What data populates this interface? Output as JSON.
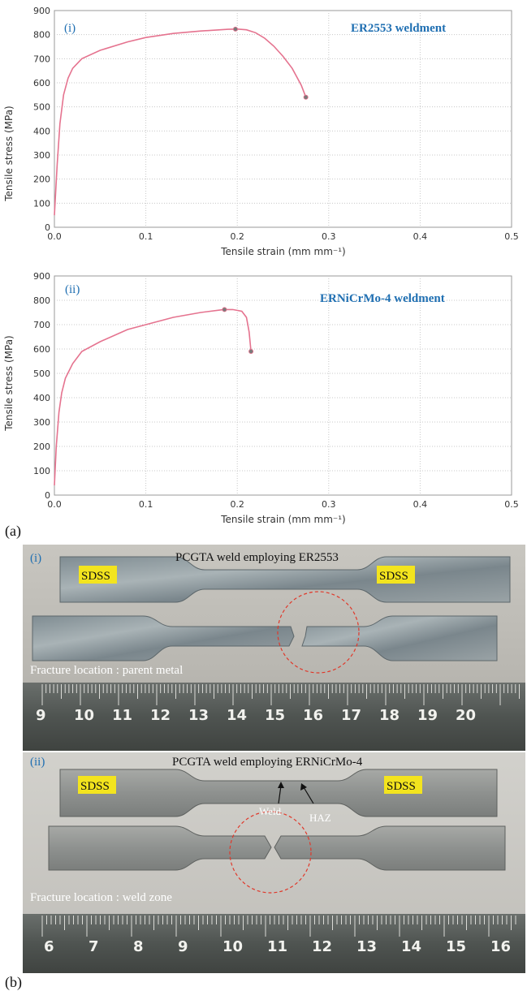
{
  "figure": {
    "panel_a_label": "(a)",
    "panel_b_label": "(b)"
  },
  "colors": {
    "curve": "#e5738f",
    "label_blue": "#1f6fb2",
    "highlight": "#f3e41e",
    "circle": "#e0382a",
    "plot_frame": "#9a9a9a",
    "grid": "#c8c8c8"
  },
  "chart_data": [
    {
      "type": "line",
      "panel_label": "(i)",
      "annotation": "ER2553 weldment",
      "xlabel": "Tensile strain (mm mm⁻¹)",
      "ylabel": "Tensile stress (MPa)",
      "xlim": [
        0,
        0.5
      ],
      "ylim": [
        0,
        900
      ],
      "xticks": [
        0.0,
        0.1,
        0.2,
        0.3,
        0.4,
        0.5
      ],
      "xtick_labels": [
        "0.0",
        "0.1",
        "0.2",
        "0.3",
        "0.4",
        "0.5"
      ],
      "yticks": [
        0,
        100,
        200,
        300,
        400,
        500,
        600,
        700,
        800,
        900
      ],
      "ytick_labels": [
        "0",
        "100",
        "200",
        "300",
        "400",
        "500",
        "600",
        "700",
        "800",
        "900"
      ],
      "grid": "dotted",
      "series": [
        {
          "x": [
            0,
            0.003,
            0.006,
            0.01,
            0.015,
            0.02,
            0.03,
            0.05,
            0.08,
            0.1,
            0.13,
            0.16,
            0.19,
            0.2,
            0.21,
            0.22,
            0.23,
            0.24,
            0.25,
            0.26,
            0.27,
            0.275
          ],
          "y": [
            50,
            260,
            430,
            550,
            620,
            660,
            700,
            735,
            770,
            788,
            805,
            815,
            822,
            823,
            820,
            808,
            785,
            752,
            710,
            660,
            590,
            540
          ]
        }
      ],
      "markers": [
        {
          "x": 0.198,
          "y": 823
        },
        {
          "x": 0.275,
          "y": 540
        }
      ]
    },
    {
      "type": "line",
      "panel_label": "(ii)",
      "annotation": "ERNiCrMo-4 weldment",
      "xlabel": "Tensile strain (mm mm⁻¹)",
      "ylabel": "Tensile stress (MPa)",
      "xlim": [
        0,
        0.5
      ],
      "ylim": [
        0,
        900
      ],
      "xticks": [
        0.0,
        0.1,
        0.2,
        0.3,
        0.4,
        0.5
      ],
      "xtick_labels": [
        "0.0",
        "0.1",
        "0.2",
        "0.3",
        "0.4",
        "0.5"
      ],
      "yticks": [
        0,
        100,
        200,
        300,
        400,
        500,
        600,
        700,
        800,
        900
      ],
      "ytick_labels": [
        "0",
        "100",
        "200",
        "300",
        "400",
        "500",
        "600",
        "700",
        "800",
        "900"
      ],
      "grid": "dotted",
      "series": [
        {
          "x": [
            0,
            0.002,
            0.005,
            0.008,
            0.012,
            0.02,
            0.03,
            0.05,
            0.08,
            0.1,
            0.13,
            0.16,
            0.185,
            0.195,
            0.205,
            0.21,
            0.213,
            0.215
          ],
          "y": [
            40,
            200,
            340,
            420,
            480,
            540,
            590,
            630,
            680,
            700,
            730,
            750,
            762,
            762,
            755,
            730,
            670,
            590
          ]
        }
      ],
      "markers": [
        {
          "x": 0.186,
          "y": 762
        },
        {
          "x": 0.215,
          "y": 590
        }
      ]
    }
  ],
  "photo_b1": {
    "panel_label": "(i)",
    "title": "PCGTA weld employing ER2553",
    "left_tag": "SDSS",
    "right_tag": "SDSS",
    "fracture": "Fracture location : parent metal",
    "ruler": [
      "9",
      "10",
      "11",
      "12",
      "13",
      "14",
      "15",
      "16",
      "17",
      "18",
      "19",
      "20"
    ]
  },
  "photo_b2": {
    "panel_label": "(ii)",
    "title": "PCGTA weld employing ERNiCrMo-4",
    "left_tag": "SDSS",
    "right_tag": "SDSS",
    "weld_label": "Weld",
    "haz_label": "HAZ",
    "fracture": "Fracture location : weld zone",
    "ruler": [
      "6",
      "7",
      "8",
      "9",
      "10",
      "11",
      "12",
      "13",
      "14",
      "15",
      "16"
    ]
  }
}
